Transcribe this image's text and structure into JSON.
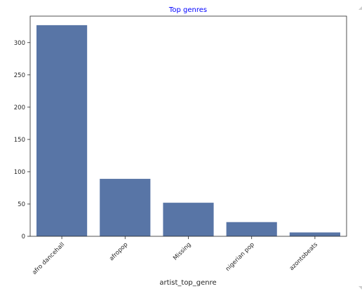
{
  "chart_data": {
    "type": "bar",
    "title": "Top genres",
    "xlabel": "artist_top_genre",
    "ylabel": "",
    "categories": [
      "afro dancehall",
      "afropop",
      "Missing",
      "nigerian pop",
      "azontobeats"
    ],
    "values": [
      327,
      89,
      52,
      22,
      6
    ],
    "ylim": [
      0,
      341
    ],
    "yticks": [
      0,
      50,
      100,
      150,
      200,
      250,
      300
    ],
    "grid": false,
    "legend": "none",
    "colors": {
      "bar": "#5875a6",
      "title": "#0000ff",
      "axis": "#262626"
    }
  }
}
